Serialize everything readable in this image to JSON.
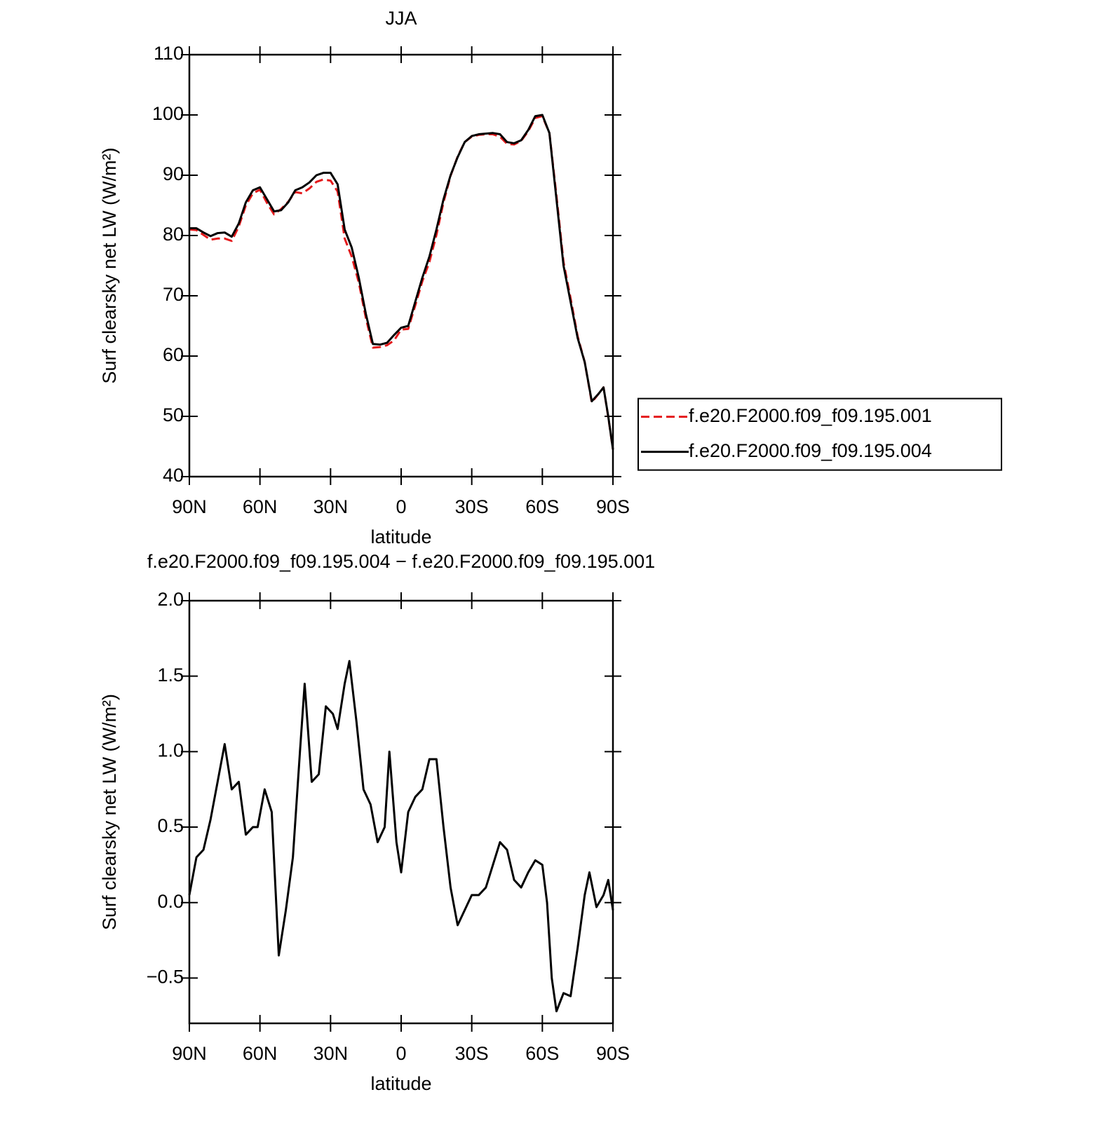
{
  "chart_data": [
    {
      "type": "line",
      "title": "JJA",
      "xlabel": "latitude",
      "ylabel": "Surf clearsky net LW (W/m²)",
      "xlim": [
        90,
        -90
      ],
      "ylim": [
        40,
        110
      ],
      "xticks": [
        {
          "value": 90,
          "label": "90N"
        },
        {
          "value": 60,
          "label": "60N"
        },
        {
          "value": 30,
          "label": "30N"
        },
        0,
        {
          "value": -30,
          "label": "30S"
        },
        {
          "value": -60,
          "label": "60S"
        },
        {
          "value": -90,
          "label": "90S"
        }
      ],
      "yticks": [
        40,
        50,
        60,
        70,
        80,
        90,
        100,
        110
      ],
      "legend": "right",
      "x": [
        90,
        87,
        84,
        81,
        78,
        75,
        72,
        69,
        66,
        63,
        60,
        57,
        54,
        51,
        48,
        45,
        42,
        39,
        36,
        33,
        30,
        27,
        24,
        21,
        18,
        15,
        12,
        9,
        6,
        3,
        0,
        -3,
        -6,
        -9,
        -12,
        -15,
        -18,
        -21,
        -24,
        -27,
        -30,
        -33,
        -36,
        -39,
        -42,
        -45,
        -48,
        -51,
        -54,
        -57,
        -60,
        -63,
        -66,
        -69,
        -72,
        -75,
        -78,
        -81,
        -84,
        -86,
        -88,
        -90
      ],
      "series": [
        {
          "name": "f.e20.F2000.f09_f09.195.001",
          "color": "#e41a1c",
          "style": "dashed",
          "values": [
            81,
            80.9,
            80.1,
            79.3,
            79.5,
            79.5,
            79.1,
            81.5,
            85,
            87,
            87.6,
            85.4,
            83.5,
            84.4,
            85.6,
            87.2,
            87,
            87.8,
            88.9,
            89.3,
            89.1,
            87.3,
            79.5,
            76.5,
            72.2,
            66.3,
            61.4,
            61.5,
            61.8,
            62.6,
            64.4,
            64.5,
            68.4,
            72.4,
            75.6,
            80.1,
            85.5,
            89.9,
            93.1,
            95.5,
            96.4,
            96.7,
            96.8,
            96.8,
            96.4,
            95.2,
            95.1,
            95.7,
            97.3,
            99.5,
            99.8,
            97,
            86.6,
            75.6,
            69.6,
            63.3,
            59,
            52.3,
            53.8,
            54.8,
            49.9,
            44.5
          ]
        },
        {
          "name": "f.e20.F2000.f09_f09.195.004",
          "color": "#000000",
          "style": "solid",
          "values": [
            81.2,
            81.2,
            80.5,
            79.9,
            80.4,
            80.5,
            79.8,
            82,
            85.5,
            87.5,
            88,
            86,
            84,
            84.2,
            85.5,
            87.5,
            88,
            88.8,
            90,
            90.4,
            90.4,
            88.5,
            81,
            78,
            73,
            67,
            62,
            61.9,
            62.2,
            63.5,
            64.7,
            65,
            69,
            73,
            76.5,
            81,
            86,
            90,
            93,
            95.5,
            96.5,
            96.8,
            96.9,
            97,
            96.8,
            95.5,
            95.3,
            95.8,
            97.5,
            99.8,
            100,
            97,
            86,
            75,
            69,
            63,
            59,
            52.5,
            53.8,
            54.8,
            50,
            44.5
          ]
        }
      ]
    },
    {
      "type": "line",
      "title": "f.e20.F2000.f09_f09.195.004 − f.e20.F2000.f09_f09.195.001",
      "xlabel": "latitude",
      "ylabel": "Surf clearsky net LW (W/m²)",
      "xlim": [
        90,
        -90
      ],
      "ylim": [
        -0.8,
        2.0
      ],
      "xticks": [
        {
          "value": 90,
          "label": "90N"
        },
        {
          "value": 60,
          "label": "60N"
        },
        {
          "value": 30,
          "label": "30N"
        },
        0,
        {
          "value": -30,
          "label": "30S"
        },
        {
          "value": -60,
          "label": "60S"
        },
        {
          "value": -90,
          "label": "90S"
        }
      ],
      "yticks": [
        {
          "value": -0.5,
          "label": "−0.5"
        },
        {
          "value": 0,
          "label": "0.0"
        },
        0.5,
        {
          "value": 1,
          "label": "1.0"
        },
        1.5,
        {
          "value": 2,
          "label": "2.0"
        }
      ],
      "x": [
        90,
        87,
        84,
        81,
        78,
        75,
        72,
        69,
        66,
        63,
        61,
        58,
        55,
        52,
        49,
        46,
        43,
        41,
        38,
        35,
        32,
        29,
        27,
        24,
        22,
        19,
        16,
        13,
        10,
        7,
        5,
        2,
        0,
        -3,
        -6,
        -9,
        -12,
        -15,
        -18,
        -21,
        -24,
        -27,
        -30,
        -33,
        -36,
        -39,
        -42,
        -45,
        -48,
        -51,
        -54,
        -57,
        -60,
        -62,
        -64,
        -66,
        -69,
        -72,
        -75,
        -78,
        -80,
        -83,
        -86,
        -88,
        -90
      ],
      "series": [
        {
          "color": "#000000",
          "style": "solid",
          "values": [
            0.05,
            0.3,
            0.35,
            0.55,
            0.8,
            1.05,
            0.75,
            0.8,
            0.45,
            0.5,
            0.5,
            0.75,
            0.6,
            -0.35,
            -0.05,
            0.3,
            1.0,
            1.45,
            0.8,
            0.85,
            1.3,
            1.25,
            1.15,
            1.45,
            1.6,
            1.2,
            0.75,
            0.65,
            0.4,
            0.5,
            1.0,
            0.4,
            0.2,
            0.6,
            0.7,
            0.75,
            0.95,
            0.95,
            0.5,
            0.1,
            -0.15,
            -0.05,
            0.05,
            0.05,
            0.1,
            0.25,
            0.4,
            0.35,
            0.15,
            0.1,
            0.2,
            0.28,
            0.25,
            0.0,
            -0.5,
            -0.72,
            -0.6,
            -0.62,
            -0.3,
            0.05,
            0.2,
            -0.03,
            0.05,
            0.15,
            -0.05
          ]
        }
      ]
    }
  ]
}
